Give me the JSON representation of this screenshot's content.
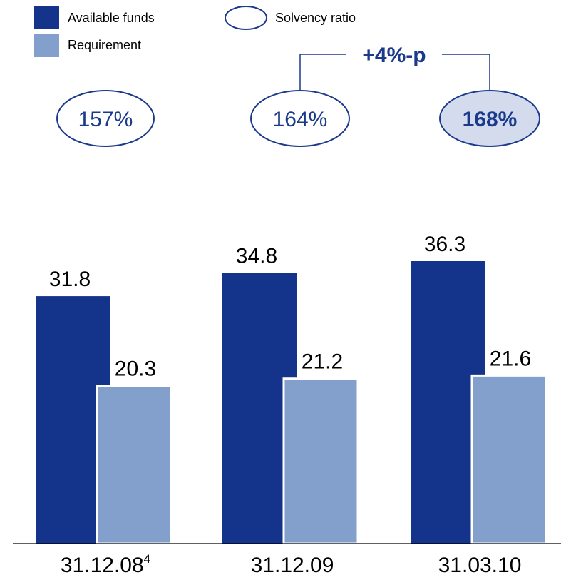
{
  "chart_data": {
    "type": "bar",
    "categories": [
      "31.12.08",
      "31.12.09",
      "31.03.10"
    ],
    "category_superscripts": [
      "4",
      "",
      ""
    ],
    "series": [
      {
        "name": "Available funds",
        "color": "#14338a",
        "values": [
          31.8,
          34.8,
          36.3
        ]
      },
      {
        "name": "Requirement",
        "color": "#839fcc",
        "values": [
          20.3,
          21.2,
          21.6
        ]
      }
    ],
    "value_labels": [
      [
        "31.8",
        "34.8",
        "36.3"
      ],
      [
        "20.3",
        "21.2",
        "21.6"
      ]
    ],
    "ylim": [
      0,
      36.3
    ],
    "legend": {
      "placement": "top-left",
      "ratio_label": "Solvency ratio"
    },
    "solvency_ratio": {
      "labels": [
        "157%",
        "164%",
        "168%"
      ],
      "highlight_index": 2,
      "highlight_fill": "#d3dbec",
      "outline_color": "#1b3a8c"
    },
    "annotation": {
      "text": "+4%-p",
      "from_index": 1,
      "to_index": 2
    }
  }
}
